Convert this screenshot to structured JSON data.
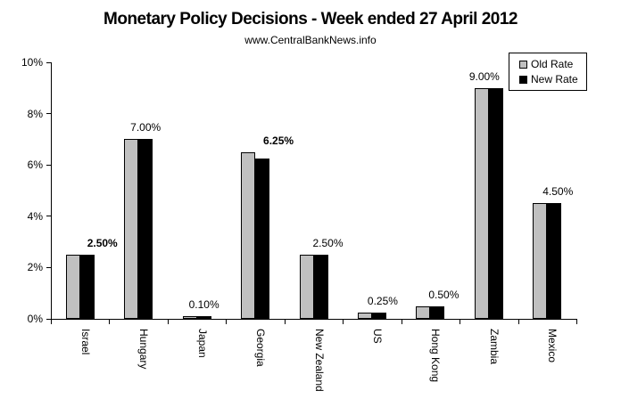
{
  "title": "Monetary Policy Decisions - Week ended 27 April 2012",
  "subtitle": "www.CentralBankNews.info",
  "legend": {
    "items": [
      {
        "label": "Old Rate",
        "color": "#C0C0C0"
      },
      {
        "label": "New Rate",
        "color": "#000000"
      }
    ]
  },
  "chart_data": {
    "type": "bar",
    "categories": [
      "Israel",
      "Hungary",
      "Japan",
      "Georgia",
      "New Zealand",
      "US",
      "Hong Kong",
      "Zambia",
      "Mexico"
    ],
    "series": [
      {
        "name": "Old Rate",
        "color": "#C0C0C0",
        "values": [
          2.5,
          7.0,
          0.1,
          6.5,
          2.5,
          0.25,
          0.5,
          9.0,
          4.5
        ]
      },
      {
        "name": "New Rate",
        "color": "#000000",
        "values": [
          2.5,
          7.0,
          0.1,
          6.25,
          2.5,
          0.25,
          0.5,
          9.0,
          4.5
        ]
      }
    ],
    "data_labels": [
      {
        "text": "2.50%",
        "bold": true
      },
      {
        "text": "7.00%",
        "bold": false
      },
      {
        "text": "0.10%",
        "bold": false
      },
      {
        "text": "6.25%",
        "bold": true
      },
      {
        "text": "2.50%",
        "bold": false
      },
      {
        "text": "0.25%",
        "bold": false
      },
      {
        "text": "0.50%",
        "bold": false
      },
      {
        "text": "9.00%",
        "bold": false
      },
      {
        "text": "4.50%",
        "bold": false
      }
    ],
    "y_ticks": [
      "0%",
      "2%",
      "4%",
      "6%",
      "8%",
      "10%"
    ],
    "ylim": [
      0,
      10
    ],
    "grid": false,
    "legend_position": "top-right",
    "bar_border_color": "#000000",
    "background": "#ffffff"
  }
}
